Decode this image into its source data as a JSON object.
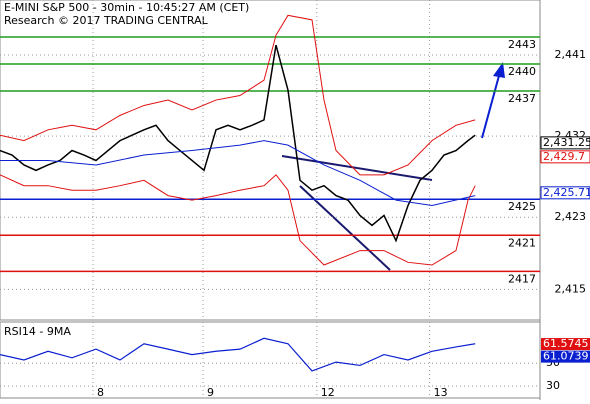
{
  "chart_data": {
    "type": "line",
    "title": "E-MINI S&P 500 - 30min - 10:45:27 AM (CET)",
    "subtitle": "Research © 2017 TRADING CENTRAL",
    "xlim": [
      0,
      225
    ],
    "ylim": [
      2411.6,
      2447.1
    ],
    "xticks": [
      {
        "value": 38.75,
        "label": "8"
      },
      {
        "value": 84.6,
        "label": "9"
      },
      {
        "value": 132,
        "label": "12"
      },
      {
        "value": 179,
        "label": "13"
      }
    ],
    "yticks": [
      {
        "value": 2441,
        "label": "2,441"
      },
      {
        "value": 2432,
        "label": "2,432"
      },
      {
        "value": 2423,
        "label": "2,423"
      },
      {
        "value": 2415,
        "label": "2,415"
      }
    ],
    "grid": true,
    "levels": {
      "values": [
        2443,
        2440,
        2437,
        2425,
        2421,
        2417
      ],
      "colors": [
        "#1e9e1e",
        "#1e9e1e",
        "#1e9e1e",
        "#0a1fd0",
        "#e01010",
        "#e01010"
      ]
    },
    "price_tags": [
      {
        "value": 2431.25,
        "label": "2,431.25",
        "color": "#000000"
      },
      {
        "value": 2429.7,
        "label": "2,429.7",
        "color": "#e01010"
      },
      {
        "value": 2425.71,
        "label": "2,425.71",
        "color": "#0a1fd0"
      }
    ],
    "series": [
      {
        "name": "Price",
        "color": "#000000",
        "x": [
          0,
          5,
          10,
          15,
          20,
          25,
          30,
          35,
          40,
          45,
          50,
          55,
          60,
          65,
          70,
          75,
          80,
          85,
          90,
          95,
          100,
          105,
          110,
          115,
          120,
          125,
          130,
          135,
          140,
          145,
          150,
          155,
          160,
          165,
          170,
          175,
          180,
          185,
          190,
          195,
          198
        ],
        "values": [
          2430.4,
          2429.9,
          2428.8,
          2428.2,
          2428.8,
          2429.3,
          2430.4,
          2429.9,
          2429.3,
          2430.4,
          2431.5,
          2432.1,
          2432.7,
          2433.2,
          2431.5,
          2430.4,
          2429.3,
          2428.2,
          2432.7,
          2433.2,
          2432.7,
          2433.2,
          2433.8,
          2442.1,
          2437.1,
          2427.1,
          2426.0,
          2426.5,
          2425.4,
          2424.9,
          2423.2,
          2422.1,
          2423.2,
          2420.4,
          2424.3,
          2427.1,
          2428.2,
          2429.9,
          2430.4,
          2431.5,
          2432.1
        ]
      },
      {
        "name": "Upper band",
        "color": "#e01010",
        "x": [
          0,
          10,
          20,
          30,
          40,
          50,
          60,
          70,
          80,
          90,
          100,
          110,
          115,
          120,
          130,
          135,
          140,
          150,
          160,
          170,
          180,
          190,
          198
        ],
        "values": [
          2432.1,
          2431.5,
          2432.7,
          2433.2,
          2432.7,
          2434.3,
          2435.4,
          2436.0,
          2434.9,
          2436.0,
          2436.5,
          2438.2,
          2443.2,
          2445.4,
          2444.9,
          2436.0,
          2430.4,
          2427.7,
          2427.7,
          2428.8,
          2431.5,
          2433.2,
          2433.8
        ]
      },
      {
        "name": "Lower band",
        "color": "#e01010",
        "x": [
          0,
          10,
          20,
          30,
          40,
          50,
          60,
          70,
          80,
          90,
          100,
          110,
          115,
          120,
          125,
          135,
          150,
          160,
          170,
          180,
          190,
          195,
          198
        ],
        "values": [
          2427.7,
          2426.5,
          2426.5,
          2426.0,
          2426.0,
          2426.5,
          2427.1,
          2425.4,
          2424.9,
          2425.4,
          2426.0,
          2426.5,
          2427.7,
          2426.0,
          2420.4,
          2417.7,
          2419.3,
          2419.3,
          2418.0,
          2417.7,
          2419.3,
          2424.9,
          2426.5
        ]
      },
      {
        "name": "Moving average",
        "color": "#0a1fd0",
        "x": [
          0,
          20,
          40,
          60,
          80,
          100,
          110,
          120,
          135,
          150,
          165,
          180,
          198
        ],
        "values": [
          2429.3,
          2429.3,
          2428.8,
          2429.9,
          2430.4,
          2431.0,
          2431.5,
          2431.0,
          2428.8,
          2427.1,
          2424.9,
          2424.3,
          2425.4
        ]
      }
    ],
    "rsi": {
      "title": "RSI14 - 9MA",
      "ylim": [
        19.5,
        86.2
      ],
      "yticks": [
        50,
        30
      ],
      "color": "#0a1fd0",
      "x": [
        0,
        10,
        20,
        30,
        40,
        50,
        60,
        70,
        80,
        90,
        100,
        110,
        120,
        130,
        140,
        150,
        160,
        170,
        180,
        190,
        198
      ],
      "values": [
        57.6,
        52.9,
        60.5,
        54.8,
        62.4,
        52.9,
        67.1,
        62.4,
        57.6,
        60.5,
        62.4,
        71.9,
        67.1,
        43.3,
        51.0,
        48.1,
        57.6,
        52.9,
        60.5,
        64.3,
        67.1
      ],
      "tags": [
        {
          "value": 61.5745,
          "label": "61.5745",
          "color": "#e01010"
        },
        {
          "value": 61.0739,
          "label": "61.0739",
          "color": "#0a1fd0"
        }
      ]
    }
  }
}
